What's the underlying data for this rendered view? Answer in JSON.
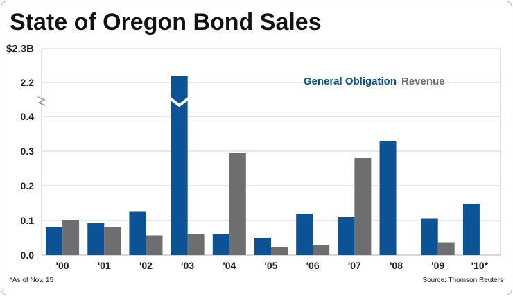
{
  "title": "State of Oregon Bond Sales",
  "footnote": "*As of Nov. 15",
  "source": "Source: Thomson Reuters",
  "chart_data": {
    "type": "bar",
    "title": "State of Oregon Bond Sales",
    "categories": [
      "'00",
      "'01",
      "'02",
      "'03",
      "'04",
      "'05",
      "'06",
      "'07",
      "'08",
      "'09",
      "'10*"
    ],
    "y_tick_labels": [
      "0.0",
      "0.1",
      "0.2",
      "0.3",
      "0.4",
      "2.2",
      "$2.3B"
    ],
    "y_axis_note": "broken axis between 0.4 and 2.2",
    "units": "billions of dollars",
    "grid": true,
    "legend_position": "top-right",
    "series": [
      {
        "name": "General Obligation",
        "color": "#0b5394",
        "values": [
          0.08,
          0.092,
          0.125,
          2.22,
          0.06,
          0.05,
          0.12,
          0.11,
          0.33,
          0.105,
          0.148
        ]
      },
      {
        "name": "Revenue",
        "color": "#6e6e70",
        "values": [
          0.1,
          0.082,
          0.057,
          0.06,
          0.295,
          0.022,
          0.03,
          0.28,
          0,
          0.037,
          0
        ]
      }
    ]
  }
}
